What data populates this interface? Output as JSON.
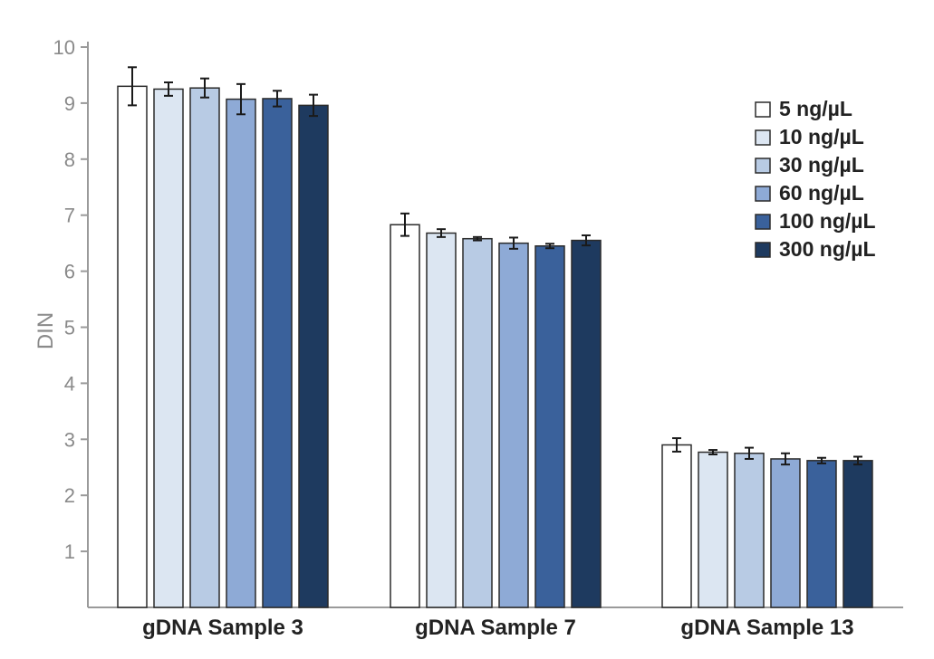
{
  "chart_data": {
    "type": "bar",
    "title": "",
    "xlabel": "",
    "ylabel": "DIN",
    "ylim": [
      0,
      10
    ],
    "yticks": [
      1,
      2,
      3,
      4,
      5,
      6,
      7,
      8,
      9,
      10
    ],
    "categories": [
      "gDNA Sample 3",
      "gDNA Sample 7",
      "gDNA Sample 13"
    ],
    "series": [
      {
        "name": "5 ng/µL",
        "color": "#ffffff",
        "values": [
          9.3,
          6.83,
          2.9
        ],
        "errors": [
          0.34,
          0.2,
          0.12
        ]
      },
      {
        "name": "10 ng/µL",
        "color": "#dce6f2",
        "values": [
          9.25,
          6.68,
          2.77
        ],
        "errors": [
          0.12,
          0.07,
          0.04
        ]
      },
      {
        "name": "30 ng/µL",
        "color": "#b8cbe4",
        "values": [
          9.27,
          6.58,
          2.75
        ],
        "errors": [
          0.17,
          0.03,
          0.1
        ]
      },
      {
        "name": "60 ng/µL",
        "color": "#8eaad6",
        "values": [
          9.07,
          6.5,
          2.65
        ],
        "errors": [
          0.27,
          0.1,
          0.1
        ]
      },
      {
        "name": "100 ng/µL",
        "color": "#3a619b",
        "values": [
          9.08,
          6.45,
          2.62
        ],
        "errors": [
          0.14,
          0.04,
          0.05
        ]
      },
      {
        "name": "300 ng/µL",
        "color": "#1e3a5f",
        "values": [
          8.96,
          6.55,
          2.62
        ],
        "errors": [
          0.19,
          0.09,
          0.07
        ]
      }
    ],
    "legend_position": "top-right",
    "grid": false
  }
}
